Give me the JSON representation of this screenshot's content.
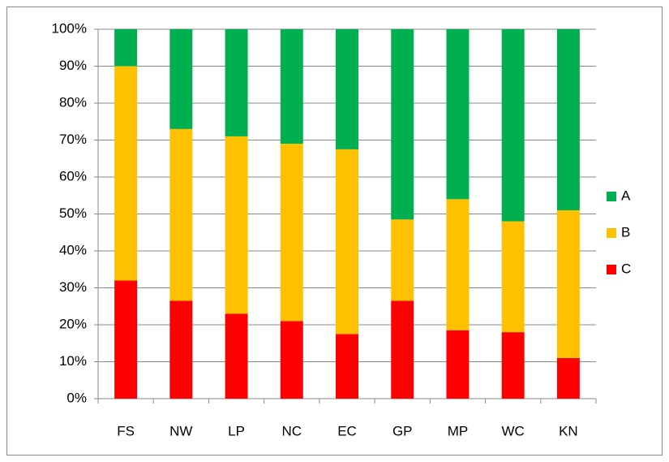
{
  "chart_data": {
    "type": "stacked-percent-bar",
    "categories": [
      "FS",
      "NW",
      "LP",
      "NC",
      "EC",
      "GP",
      "MP",
      "WC",
      "KN"
    ],
    "series": [
      {
        "name": "A",
        "color": "#00b050",
        "values": [
          10,
          27,
          29,
          31,
          32.5,
          51.5,
          46,
          52,
          49
        ]
      },
      {
        "name": "B",
        "color": "#ffc000",
        "values": [
          58,
          46.5,
          48,
          48,
          50,
          22,
          35.5,
          30,
          40
        ]
      },
      {
        "name": "C",
        "color": "#ff0000",
        "values": [
          32,
          26.5,
          23,
          21,
          17.5,
          26.5,
          18.5,
          18,
          11
        ]
      }
    ],
    "ylim": [
      0,
      100
    ],
    "yticks": [
      {
        "value": 0,
        "label": "0%"
      },
      {
        "value": 10,
        "label": "10%"
      },
      {
        "value": 20,
        "label": "20%"
      },
      {
        "value": 30,
        "label": "30%"
      },
      {
        "value": 40,
        "label": "40%"
      },
      {
        "value": 50,
        "label": "50%"
      },
      {
        "value": 60,
        "label": "60%"
      },
      {
        "value": 70,
        "label": "70%"
      },
      {
        "value": 80,
        "label": "80%"
      },
      {
        "value": 90,
        "label": "90%"
      },
      {
        "value": 100,
        "label": "100%"
      }
    ],
    "grid": true,
    "legend": "right"
  }
}
